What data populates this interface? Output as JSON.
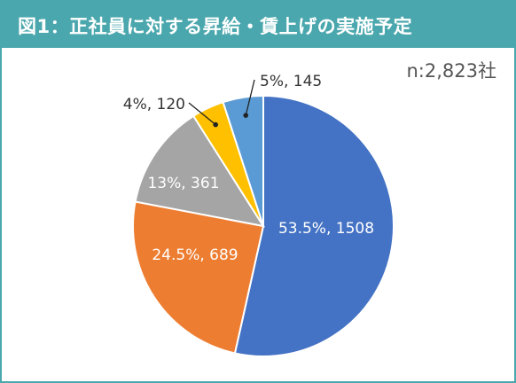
{
  "title": "図1：正社員に対する昇給・賃上げの実施予定",
  "sample_note": "n:2,823社",
  "colors": {
    "header_bg": "#4aa7ad",
    "header_text": "#ffffff"
  },
  "chart_data": {
    "type": "pie",
    "title": "図1：正社員に対する昇給・賃上げの実施予定",
    "slices": [
      {
        "percent": 53.5,
        "value": 1508,
        "label": "53.5%, 1508",
        "color": "#4472c4",
        "label_inside": true
      },
      {
        "percent": 24.5,
        "value": 689,
        "label": "24.5%, 689",
        "color": "#ed7d31",
        "label_inside": true
      },
      {
        "percent": 13,
        "value": 361,
        "label": "13%, 361",
        "color": "#a5a5a5",
        "label_inside": true
      },
      {
        "percent": 4,
        "value": 120,
        "label": "4%, 120",
        "color": "#ffc000",
        "label_inside": false
      },
      {
        "percent": 5,
        "value": 145,
        "label": "5%, 145",
        "color": "#5b9bd5",
        "label_inside": false
      }
    ],
    "total_n": 2823,
    "legend": "none"
  }
}
